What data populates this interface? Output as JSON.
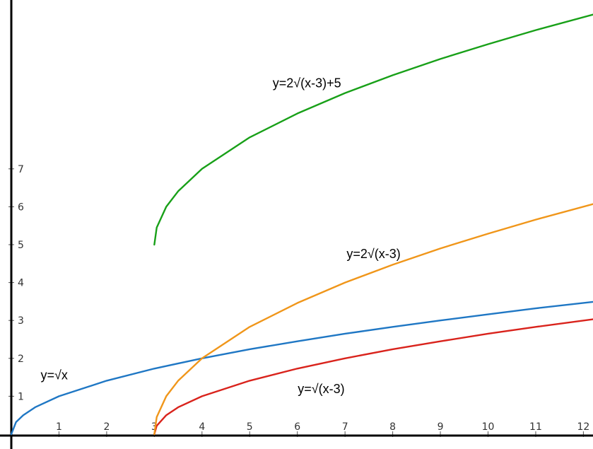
{
  "chart_data": {
    "type": "line",
    "title": "",
    "xlabel": "",
    "ylabel": "",
    "xlim": [
      0,
      12.2
    ],
    "ylim": [
      0,
      11.3
    ],
    "x_ticks": [
      1,
      2,
      3,
      4,
      5,
      6,
      7,
      8,
      9,
      10,
      11,
      12
    ],
    "y_ticks": [
      1,
      2,
      3,
      4,
      5,
      6,
      7
    ],
    "x_tick_labels": [
      "1",
      "2",
      "3",
      "4",
      "5",
      "6",
      "7",
      "8",
      "9",
      "10",
      "11",
      "12"
    ],
    "y_tick_labels": [
      "1",
      "2",
      "3",
      "4",
      "5",
      "6",
      "7"
    ],
    "grid": false,
    "legend": "none",
    "series": [
      {
        "name": "y=√x",
        "color": "#1f77c4",
        "x": [
          0,
          0.1,
          0.25,
          0.5,
          1,
          2,
          3,
          4,
          5,
          6,
          7,
          8,
          9,
          10,
          11,
          12.2
        ],
        "y": [
          0,
          0.32,
          0.5,
          0.71,
          1,
          1.41,
          1.73,
          2,
          2.24,
          2.45,
          2.65,
          2.83,
          3,
          3.16,
          3.32,
          3.49
        ]
      },
      {
        "name": "y=√(x-3)",
        "color": "#d9231c",
        "x": [
          3,
          3.05,
          3.25,
          3.5,
          4,
          5,
          6,
          7,
          8,
          9,
          10,
          11,
          12.2
        ],
        "y": [
          0,
          0.22,
          0.5,
          0.71,
          1,
          1.41,
          1.73,
          2,
          2.24,
          2.45,
          2.65,
          2.83,
          3.03
        ]
      },
      {
        "name": "y=2√(x-3)",
        "color": "#f0961a",
        "x": [
          3,
          3.05,
          3.25,
          3.5,
          4,
          5,
          6,
          7,
          8,
          9,
          10,
          11,
          12.2
        ],
        "y": [
          0,
          0.45,
          1,
          1.41,
          2,
          2.83,
          3.46,
          4,
          4.47,
          4.9,
          5.29,
          5.66,
          6.07
        ]
      },
      {
        "name": "y=2√(x-3)+5",
        "color": "#18a018",
        "x": [
          3,
          3.05,
          3.25,
          3.5,
          4,
          5,
          6,
          7,
          8,
          9,
          10,
          11,
          12.2
        ],
        "y": [
          5,
          5.45,
          6,
          6.41,
          7,
          7.83,
          8.46,
          9,
          9.47,
          9.9,
          10.29,
          10.66,
          11.07
        ]
      }
    ],
    "annotations": [
      {
        "text": "y=√x",
        "x": 0.9,
        "y": 1.45
      },
      {
        "text": "y=√(x-3)",
        "x": 6.5,
        "y": 1.08
      },
      {
        "text": "y=2√(x-3)",
        "x": 7.6,
        "y": 4.65
      },
      {
        "text": "y=2√(x-3)+5",
        "x": 6.2,
        "y": 9.15
      }
    ]
  }
}
